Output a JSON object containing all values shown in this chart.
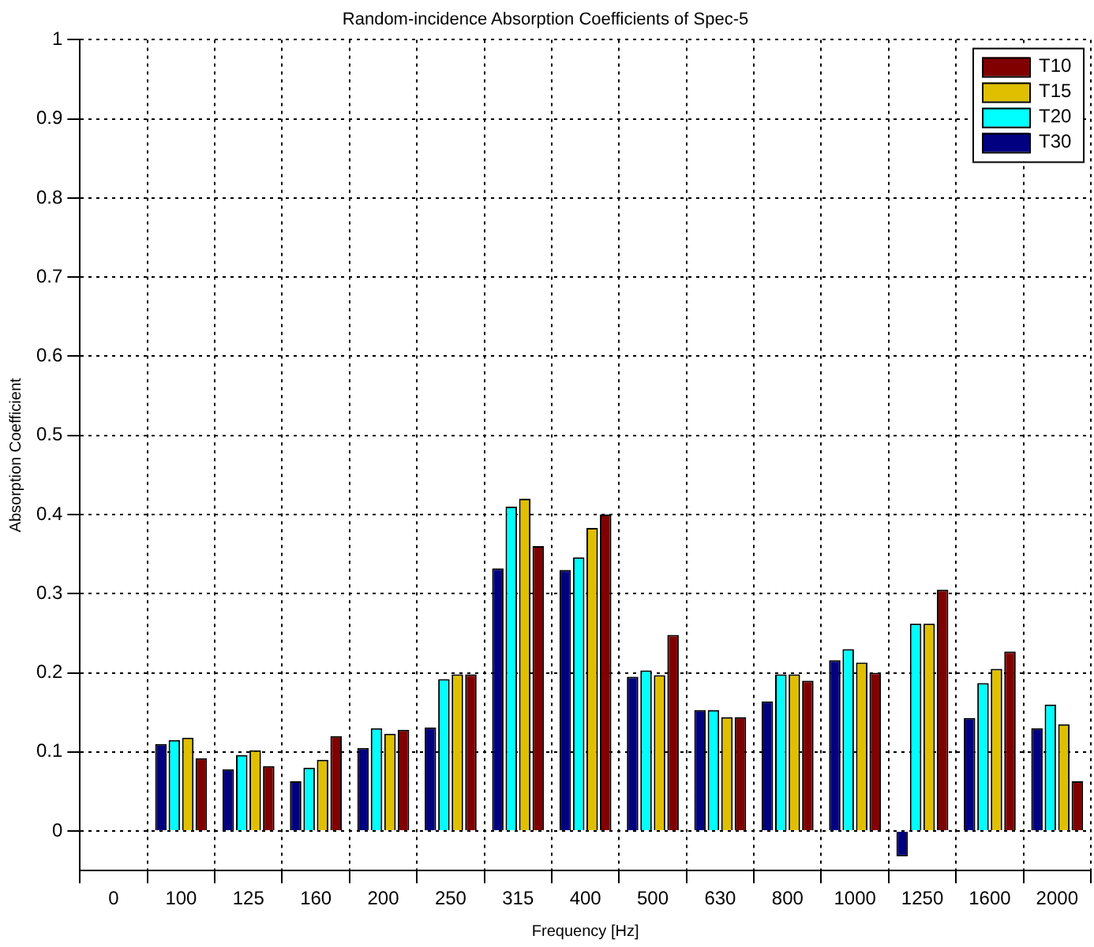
{
  "chart_data": {
    "type": "bar",
    "title": "Random-incidence Absorption Coefficients of Spec-5",
    "xlabel": "Frequency [Hz]",
    "ylabel": "Absorption Coefficient",
    "categories": [
      "0",
      "100",
      "125",
      "160",
      "200",
      "250",
      "315",
      "400",
      "500",
      "630",
      "800",
      "1000",
      "1250",
      "1600",
      "2000"
    ],
    "series": [
      {
        "name": "T10",
        "color": "#800000",
        "values": [
          null,
          0.092,
          0.082,
          0.12,
          0.128,
          0.198,
          0.36,
          0.4,
          0.248,
          0.144,
          0.19,
          0.2,
          0.305,
          0.227,
          0.063
        ]
      },
      {
        "name": "T15",
        "color": "#dfbf00",
        "values": [
          null,
          0.118,
          0.102,
          0.09,
          0.123,
          0.198,
          0.42,
          0.383,
          0.197,
          0.144,
          0.198,
          0.213,
          0.262,
          0.205,
          0.135
        ]
      },
      {
        "name": "T20",
        "color": "#00ffff",
        "values": [
          null,
          0.115,
          0.096,
          0.08,
          0.13,
          0.192,
          0.41,
          0.346,
          0.203,
          0.153,
          0.198,
          0.23,
          0.262,
          0.187,
          0.16
        ]
      },
      {
        "name": "T30",
        "color": "#000080",
        "values": [
          null,
          0.11,
          0.078,
          0.063,
          0.105,
          0.131,
          0.332,
          0.33,
          0.195,
          0.153,
          0.164,
          0.216,
          -0.032,
          0.143,
          0.13
        ]
      }
    ],
    "ylim": [
      -0.05,
      1
    ],
    "yticks": [
      0,
      0.1,
      0.2,
      0.3,
      0.4,
      0.5,
      0.6,
      0.7,
      0.8,
      0.9,
      1
    ],
    "grid": true,
    "legend": "top right"
  }
}
